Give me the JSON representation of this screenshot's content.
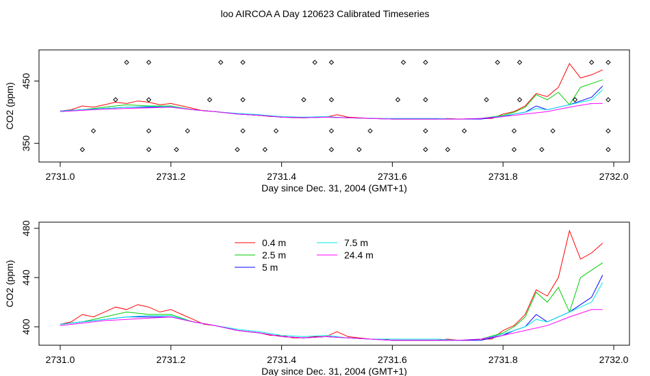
{
  "title": "loo AIRCOA A  Day 120623  Calibrated Timeseries",
  "chart_data": [
    {
      "type": "scatter",
      "xlabel": "Day since Dec. 31, 2004 (GMT+1)",
      "ylabel": "CO2 (ppm)",
      "xlim": [
        2731.0,
        2732.0
      ],
      "ylim": [
        320,
        500
      ],
      "x_ticks": [
        "2731.0",
        "2731.2",
        "2731.4",
        "2731.6",
        "2731.8",
        "2732.0"
      ],
      "y_ticks": [
        "350",
        "450"
      ],
      "grid": false,
      "legend": "none",
      "series": [
        {
          "color": "#ff0000",
          "x": [
            2731.0,
            2731.02,
            2731.04,
            2731.06,
            2731.08,
            2731.1,
            2731.12,
            2731.14,
            2731.16,
            2731.18,
            2731.2,
            2731.22,
            2731.24,
            2731.26,
            2731.28,
            2731.3,
            2731.32,
            2731.34,
            2731.36,
            2731.38,
            2731.4,
            2731.42,
            2731.44,
            2731.46,
            2731.48,
            2731.5,
            2731.52,
            2731.54,
            2731.56,
            2731.58,
            2731.6,
            2731.62,
            2731.64,
            2731.66,
            2731.68,
            2731.7,
            2731.72,
            2731.74,
            2731.76,
            2731.78,
            2731.8,
            2731.82,
            2731.84,
            2731.86,
            2731.88,
            2731.9,
            2731.92,
            2731.94,
            2731.96,
            2731.98
          ],
          "y": [
            402,
            404,
            410,
            408,
            412,
            416,
            414,
            418,
            416,
            412,
            414,
            410,
            406,
            402,
            401,
            399,
            397,
            396,
            395,
            393,
            393,
            391,
            391,
            392,
            392,
            396,
            392,
            391,
            390,
            390,
            389,
            389,
            389,
            389,
            389,
            390,
            389,
            389,
            390,
            390,
            397,
            401,
            410,
            430,
            425,
            440,
            478,
            455,
            460,
            468
          ]
        },
        {
          "color": "#00cc00",
          "x": [
            2731.0,
            2731.04,
            2731.08,
            2731.12,
            2731.16,
            2731.2,
            2731.24,
            2731.28,
            2731.32,
            2731.36,
            2731.4,
            2731.44,
            2731.48,
            2731.52,
            2731.56,
            2731.6,
            2731.64,
            2731.68,
            2731.72,
            2731.76,
            2731.8,
            2731.82,
            2731.84,
            2731.86,
            2731.88,
            2731.9,
            2731.92,
            2731.94,
            2731.96,
            2731.98
          ],
          "y": [
            402,
            404,
            408,
            412,
            410,
            410,
            404,
            401,
            397,
            395,
            392,
            391,
            392,
            391,
            390,
            389,
            389,
            389,
            389,
            390,
            395,
            400,
            408,
            428,
            420,
            432,
            412,
            440,
            446,
            452
          ]
        },
        {
          "color": "#0000ff",
          "x": [
            2731.0,
            2731.04,
            2731.08,
            2731.12,
            2731.16,
            2731.2,
            2731.24,
            2731.28,
            2731.32,
            2731.36,
            2731.4,
            2731.44,
            2731.48,
            2731.52,
            2731.56,
            2731.6,
            2731.64,
            2731.68,
            2731.72,
            2731.76,
            2731.8,
            2731.82,
            2731.84,
            2731.86,
            2731.88,
            2731.9,
            2731.92,
            2731.94,
            2731.96,
            2731.98
          ],
          "y": [
            402,
            404,
            406,
            408,
            408,
            408,
            404,
            401,
            397,
            395,
            392,
            391,
            392,
            391,
            390,
            389,
            389,
            389,
            389,
            389,
            393,
            397,
            400,
            410,
            404,
            408,
            412,
            418,
            424,
            442
          ]
        },
        {
          "color": "#00e5e5",
          "x": [
            2731.0,
            2731.04,
            2731.08,
            2731.12,
            2731.16,
            2731.2,
            2731.24,
            2731.28,
            2731.32,
            2731.36,
            2731.4,
            2731.44,
            2731.48,
            2731.52,
            2731.56,
            2731.6,
            2731.64,
            2731.68,
            2731.72,
            2731.76,
            2731.8,
            2731.82,
            2731.84,
            2731.86,
            2731.88,
            2731.9,
            2731.92,
            2731.94,
            2731.96,
            2731.98
          ],
          "y": [
            402,
            404,
            406,
            408,
            409,
            409,
            404,
            401,
            398,
            396,
            393,
            392,
            393,
            391,
            390,
            390,
            390,
            390,
            389,
            390,
            394,
            397,
            400,
            406,
            404,
            408,
            412,
            416,
            420,
            436
          ]
        },
        {
          "color": "#ff00ff",
          "x": [
            2731.0,
            2731.04,
            2731.08,
            2731.12,
            2731.16,
            2731.2,
            2731.24,
            2731.28,
            2731.32,
            2731.36,
            2731.4,
            2731.44,
            2731.48,
            2731.52,
            2731.56,
            2731.6,
            2731.64,
            2731.68,
            2731.72,
            2731.76,
            2731.8,
            2731.84,
            2731.88,
            2731.92,
            2731.96,
            2731.98
          ],
          "y": [
            401,
            403,
            405,
            406,
            407,
            408,
            404,
            401,
            397,
            395,
            392,
            391,
            392,
            391,
            390,
            389,
            389,
            389,
            389,
            390,
            393,
            397,
            401,
            408,
            414,
            414
          ]
        }
      ],
      "markers": {
        "x": [
          2731.04,
          2731.06,
          2731.1,
          2731.12,
          2731.16,
          2731.16,
          2731.16,
          2731.16,
          2731.21,
          2731.23,
          2731.27,
          2731.29,
          2731.32,
          2731.33,
          2731.33,
          2731.33,
          2731.37,
          2731.39,
          2731.44,
          2731.46,
          2731.49,
          2731.49,
          2731.49,
          2731.49,
          2731.54,
          2731.56,
          2731.61,
          2731.62,
          2731.66,
          2731.66,
          2731.66,
          2731.66,
          2731.7,
          2731.73,
          2731.77,
          2731.79,
          2731.82,
          2731.82,
          2731.83,
          2731.83,
          2731.87,
          2731.89,
          2731.93,
          2731.96,
          2731.99,
          2731.99,
          2731.99,
          2731.99
        ],
        "y": [
          340,
          370,
          420,
          480,
          340,
          370,
          420,
          480,
          340,
          370,
          420,
          480,
          340,
          370,
          420,
          480,
          340,
          370,
          420,
          480,
          340,
          370,
          420,
          480,
          340,
          370,
          420,
          480,
          340,
          370,
          420,
          480,
          340,
          370,
          420,
          480,
          340,
          370,
          420,
          480,
          340,
          370,
          420,
          480,
          340,
          370,
          420,
          480
        ]
      }
    },
    {
      "type": "line",
      "xlabel": "Day since Dec. 31, 2004 (GMT+1)",
      "ylabel": "CO2 (ppm)",
      "xlim": [
        2731.0,
        2732.0
      ],
      "ylim": [
        385,
        485
      ],
      "x_ticks": [
        "2731.0",
        "2731.2",
        "2731.4",
        "2731.6",
        "2731.8",
        "2732.0"
      ],
      "y_ticks": [
        "400",
        "440",
        "480"
      ],
      "grid": false,
      "legend": "top-center",
      "series": [
        {
          "name": "0.4 m",
          "color": "#ff0000",
          "x": [
            2731.0,
            2731.02,
            2731.04,
            2731.06,
            2731.08,
            2731.1,
            2731.12,
            2731.14,
            2731.16,
            2731.18,
            2731.2,
            2731.22,
            2731.24,
            2731.26,
            2731.28,
            2731.3,
            2731.32,
            2731.34,
            2731.36,
            2731.38,
            2731.4,
            2731.42,
            2731.44,
            2731.46,
            2731.48,
            2731.5,
            2731.52,
            2731.54,
            2731.56,
            2731.58,
            2731.6,
            2731.62,
            2731.64,
            2731.66,
            2731.68,
            2731.7,
            2731.72,
            2731.74,
            2731.76,
            2731.78,
            2731.8,
            2731.82,
            2731.84,
            2731.86,
            2731.88,
            2731.9,
            2731.92,
            2731.94,
            2731.96,
            2731.98
          ],
          "y": [
            402,
            404,
            410,
            408,
            412,
            416,
            414,
            418,
            416,
            412,
            414,
            410,
            406,
            402,
            401,
            399,
            397,
            396,
            395,
            393,
            393,
            391,
            391,
            392,
            392,
            396,
            392,
            391,
            390,
            390,
            389,
            389,
            389,
            389,
            389,
            390,
            389,
            389,
            390,
            390,
            397,
            401,
            410,
            430,
            425,
            440,
            478,
            455,
            460,
            468
          ]
        },
        {
          "name": "2.5 m",
          "color": "#00cc00",
          "x": [
            2731.0,
            2731.04,
            2731.08,
            2731.12,
            2731.16,
            2731.2,
            2731.24,
            2731.28,
            2731.32,
            2731.36,
            2731.4,
            2731.44,
            2731.48,
            2731.52,
            2731.56,
            2731.6,
            2731.64,
            2731.68,
            2731.72,
            2731.76,
            2731.8,
            2731.82,
            2731.84,
            2731.86,
            2731.88,
            2731.9,
            2731.92,
            2731.94,
            2731.96,
            2731.98
          ],
          "y": [
            402,
            404,
            408,
            412,
            410,
            410,
            404,
            401,
            397,
            395,
            392,
            391,
            392,
            391,
            390,
            389,
            389,
            389,
            389,
            390,
            395,
            400,
            408,
            428,
            420,
            432,
            412,
            440,
            446,
            452
          ]
        },
        {
          "name": "5 m",
          "color": "#0000ff",
          "x": [
            2731.0,
            2731.04,
            2731.08,
            2731.12,
            2731.16,
            2731.2,
            2731.24,
            2731.28,
            2731.32,
            2731.36,
            2731.4,
            2731.44,
            2731.48,
            2731.52,
            2731.56,
            2731.6,
            2731.64,
            2731.68,
            2731.72,
            2731.76,
            2731.8,
            2731.82,
            2731.84,
            2731.86,
            2731.88,
            2731.9,
            2731.92,
            2731.94,
            2731.96,
            2731.98
          ],
          "y": [
            402,
            404,
            406,
            408,
            408,
            408,
            404,
            401,
            397,
            395,
            392,
            391,
            392,
            391,
            390,
            389,
            389,
            389,
            389,
            389,
            393,
            397,
            400,
            410,
            404,
            408,
            412,
            418,
            424,
            442
          ]
        },
        {
          "name": "7.5 m",
          "color": "#00e5e5",
          "x": [
            2731.0,
            2731.04,
            2731.08,
            2731.12,
            2731.16,
            2731.2,
            2731.24,
            2731.28,
            2731.32,
            2731.36,
            2731.4,
            2731.44,
            2731.48,
            2731.52,
            2731.56,
            2731.6,
            2731.64,
            2731.68,
            2731.72,
            2731.76,
            2731.8,
            2731.82,
            2731.84,
            2731.86,
            2731.88,
            2731.9,
            2731.92,
            2731.94,
            2731.96,
            2731.98
          ],
          "y": [
            402,
            404,
            406,
            408,
            409,
            409,
            404,
            401,
            398,
            396,
            393,
            392,
            393,
            391,
            390,
            390,
            390,
            390,
            389,
            390,
            394,
            397,
            400,
            406,
            404,
            408,
            412,
            416,
            420,
            436
          ]
        },
        {
          "name": "24.4 m",
          "color": "#ff00ff",
          "x": [
            2731.0,
            2731.04,
            2731.08,
            2731.12,
            2731.16,
            2731.2,
            2731.24,
            2731.28,
            2731.32,
            2731.36,
            2731.4,
            2731.44,
            2731.48,
            2731.52,
            2731.56,
            2731.6,
            2731.64,
            2731.68,
            2731.72,
            2731.76,
            2731.8,
            2731.84,
            2731.88,
            2731.92,
            2731.96,
            2731.98
          ],
          "y": [
            401,
            403,
            405,
            406,
            407,
            408,
            404,
            401,
            397,
            395,
            392,
            391,
            392,
            391,
            390,
            389,
            389,
            389,
            389,
            390,
            393,
            397,
            401,
            408,
            414,
            414
          ]
        }
      ]
    }
  ]
}
